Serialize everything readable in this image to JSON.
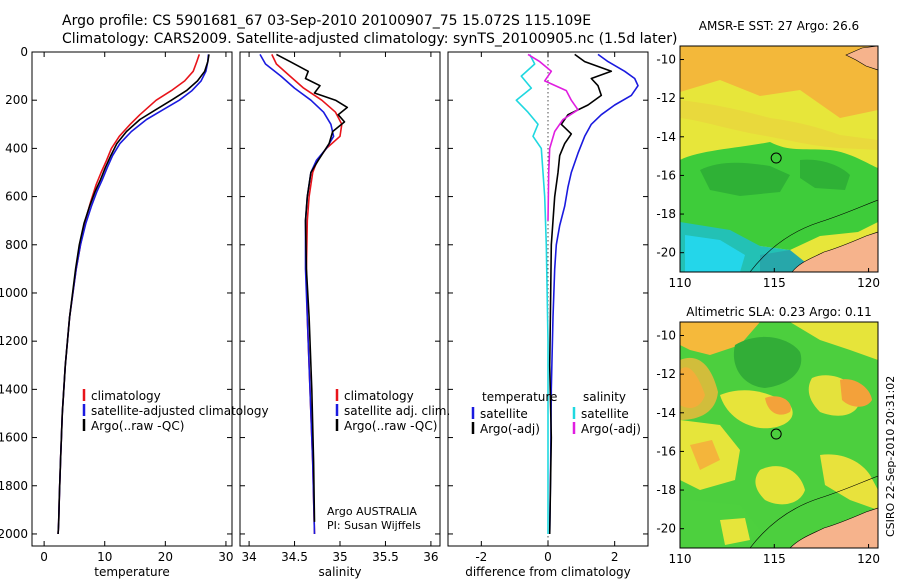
{
  "header": {
    "line1": "Argo profile: CS 5901681_67 03-Sep-2010 20100907_75 15.072S 115.109E",
    "line2": "Climatology: CARS2009. Satellite-adjusted climatology: synTS_20100905.nc (1.5d later)"
  },
  "footer": {
    "credit": "CSIRO 22-Sep-2010 20:31:02"
  },
  "colors": {
    "climatology": "#e8141a",
    "satellite": "#1a1adf",
    "argo": "#000000",
    "sal_satellite": "#1fd8e0",
    "sal_argo": "#e01ee0"
  },
  "chart_data": [
    {
      "type": "line",
      "id": "temperature",
      "xlabel": "temperature",
      "ylabel": "",
      "xlim": [
        -2,
        31
      ],
      "ylim": [
        2050,
        0
      ],
      "xticks": [
        0,
        10,
        20,
        30
      ],
      "yticks": [
        0,
        200,
        400,
        600,
        800,
        1000,
        1200,
        1400,
        1600,
        1800,
        2000
      ],
      "legend_position": "bottom-right",
      "series": [
        {
          "name": "climatology",
          "color": "#e8141a",
          "x": [
            25.6,
            25.2,
            24.6,
            23.2,
            21.0,
            18.5,
            15.8,
            14.2,
            12.4,
            11.1,
            10.3,
            9.4,
            8.6,
            7.7,
            6.8,
            6.0,
            5.3,
            4.2,
            3.5,
            3.0,
            2.7,
            2.5,
            2.4,
            2.3
          ],
          "y": [
            10,
            40,
            80,
            120,
            160,
            200,
            260,
            300,
            350,
            400,
            450,
            500,
            550,
            620,
            700,
            800,
            900,
            1100,
            1300,
            1500,
            1700,
            1850,
            1950,
            2000
          ]
        },
        {
          "name": "satellite-adjusted climatology",
          "color": "#1a1adf",
          "x": [
            27.1,
            27.0,
            26.7,
            25.9,
            24.4,
            22.3,
            19.6,
            16.9,
            14.4,
            12.5,
            11.3,
            10.4,
            9.6,
            8.7,
            7.8,
            6.9,
            6.0,
            5.3,
            4.2,
            3.5,
            3.0,
            2.7,
            2.5,
            2.4,
            2.3
          ],
          "y": [
            10,
            40,
            80,
            120,
            160,
            200,
            240,
            280,
            330,
            380,
            430,
            480,
            530,
            580,
            640,
            710,
            800,
            900,
            1100,
            1300,
            1500,
            1700,
            1850,
            1950,
            2000
          ]
        },
        {
          "name": "Argo(..raw -QC)",
          "color": "#000000",
          "x": [
            27.2,
            27.0,
            26.5,
            25.3,
            23.5,
            21.0,
            18.4,
            15.8,
            13.6,
            12.0,
            11.0,
            10.1,
            9.3,
            8.4,
            7.5,
            6.6,
            5.8,
            5.2,
            4.2,
            3.5,
            3.0,
            2.7,
            2.5,
            2.4,
            2.3
          ],
          "y": [
            10,
            40,
            80,
            120,
            160,
            200,
            240,
            280,
            330,
            380,
            430,
            480,
            530,
            580,
            640,
            710,
            800,
            900,
            1100,
            1300,
            1500,
            1700,
            1850,
            1950,
            2000
          ]
        }
      ]
    },
    {
      "type": "line",
      "id": "salinity",
      "xlabel": "salinity",
      "ylabel": "",
      "xlim": [
        33.9,
        36.1
      ],
      "ylim": [
        2050,
        0
      ],
      "xticks": [
        34,
        34.5,
        35,
        35.5,
        36
      ],
      "xticklabels": [
        "34",
        "34.5",
        "35",
        "35.5",
        "36"
      ],
      "legend_position": "bottom-right",
      "annotation_lines": [
        "Argo AUSTRALIA",
        "PI: Susan Wijffels"
      ],
      "series": [
        {
          "name": "climatology",
          "color": "#e8141a",
          "x": [
            34.25,
            34.3,
            34.45,
            34.6,
            34.8,
            34.95,
            35.02,
            35.0,
            34.85,
            34.75,
            34.7,
            34.66,
            34.64,
            34.63,
            34.64,
            34.67,
            34.7,
            34.72
          ],
          "y": [
            10,
            50,
            100,
            150,
            200,
            250,
            300,
            350,
            400,
            450,
            500,
            600,
            700,
            900,
            1100,
            1400,
            1700,
            2000
          ]
        },
        {
          "name": "satellite adj. clim.",
          "color": "#1a1adf",
          "x": [
            34.12,
            34.18,
            34.35,
            34.5,
            34.68,
            34.82,
            34.9,
            34.93,
            34.85,
            34.74,
            34.68,
            34.64,
            34.62,
            34.62,
            34.64,
            34.67,
            34.7,
            34.72
          ],
          "y": [
            10,
            50,
            100,
            150,
            200,
            250,
            300,
            350,
            400,
            450,
            500,
            600,
            700,
            900,
            1100,
            1400,
            1700,
            2000
          ]
        },
        {
          "name": "Argo(..raw -QC)",
          "color": "#000000",
          "x": [
            34.3,
            34.45,
            34.65,
            34.62,
            34.78,
            34.72,
            34.95,
            35.08,
            34.98,
            35.05,
            34.92,
            34.88,
            34.76,
            34.68,
            34.64,
            34.62,
            34.63,
            34.66,
            34.69,
            34.71,
            34.72
          ],
          "y": [
            10,
            40,
            80,
            110,
            140,
            170,
            200,
            230,
            260,
            290,
            330,
            380,
            450,
            500,
            600,
            700,
            900,
            1100,
            1400,
            1700,
            1950
          ]
        }
      ]
    },
    {
      "type": "line",
      "id": "difference",
      "xlabel": "difference from climatology",
      "ylabel": "",
      "xlim": [
        -3,
        3
      ],
      "ylim": [
        2050,
        0
      ],
      "xticks": [
        -2,
        0,
        2
      ],
      "legend_position": "bottom",
      "legend_groups": [
        {
          "title": "temperature",
          "entries": [
            "satellite",
            "Argo(-adj)"
          ]
        },
        {
          "title": "salinity",
          "entries": [
            "satellite",
            "Argo(-adj)"
          ]
        }
      ],
      "series": [
        {
          "name": "temperature satellite",
          "color": "#1a1adf",
          "x": [
            1.5,
            1.8,
            2.3,
            2.6,
            2.7,
            2.5,
            2.0,
            1.6,
            1.3,
            1.1,
            0.9,
            0.7,
            0.6,
            0.5,
            0.35,
            0.25,
            0.2,
            0.15,
            0.1,
            0.08,
            0.05
          ],
          "y": [
            10,
            40,
            80,
            110,
            140,
            180,
            220,
            260,
            300,
            350,
            420,
            500,
            560,
            640,
            720,
            800,
            900,
            1100,
            1400,
            1700,
            2000
          ]
        },
        {
          "name": "temperature Argo(-adj)",
          "color": "#000000",
          "x": [
            0.8,
            1.1,
            1.9,
            1.3,
            1.5,
            1.6,
            1.2,
            0.6,
            0.4,
            0.7,
            0.5,
            0.35,
            0.3,
            0.2,
            0.15,
            0.1,
            0.08,
            0.05,
            0.1,
            0.05
          ],
          "y": [
            10,
            40,
            80,
            110,
            140,
            180,
            220,
            260,
            300,
            340,
            380,
            430,
            500,
            600,
            700,
            800,
            1000,
            1300,
            1600,
            2000
          ]
        },
        {
          "name": "salinity satellite",
          "color": "#1fd8e0",
          "x": [
            -0.55,
            -0.4,
            -0.8,
            -0.5,
            -0.95,
            -0.6,
            -0.3,
            -0.45,
            -0.2,
            -0.15,
            -0.1,
            -0.05,
            0.0,
            0.0
          ],
          "y": [
            10,
            50,
            100,
            150,
            200,
            250,
            300,
            350,
            400,
            500,
            600,
            800,
            1200,
            2000
          ]
        },
        {
          "name": "salinity Argo(-adj)",
          "color": "#e01ee0",
          "x": [
            -0.6,
            -0.25,
            0.1,
            -0.1,
            0.55,
            0.7,
            0.9,
            0.45,
            0.2,
            0.05,
            0.02,
            0.0
          ],
          "y": [
            10,
            40,
            80,
            120,
            160,
            200,
            240,
            280,
            330,
            400,
            500,
            700
          ]
        }
      ]
    },
    {
      "type": "heatmap",
      "id": "sst_map",
      "title": "AMSR-E SST: 27 Argo: 26.6",
      "xlim": [
        110,
        120.5
      ],
      "ylim": [
        -21,
        -9.3
      ],
      "xticks": [
        110,
        115,
        120
      ],
      "yticks": [
        -10,
        -12,
        -14,
        -16,
        -18,
        -20
      ],
      "marker": {
        "lon": 115.1,
        "lat": -15.1
      }
    },
    {
      "type": "heatmap",
      "id": "sla_map",
      "title": "Altimetric SLA: 0.23 Argo: 0.11",
      "xlim": [
        110,
        120.5
      ],
      "ylim": [
        -21,
        -9.3
      ],
      "xticks": [
        110,
        115,
        120
      ],
      "yticks": [
        -10,
        -12,
        -14,
        -16,
        -18,
        -20
      ],
      "marker": {
        "lon": 115.1,
        "lat": -15.1
      }
    }
  ]
}
